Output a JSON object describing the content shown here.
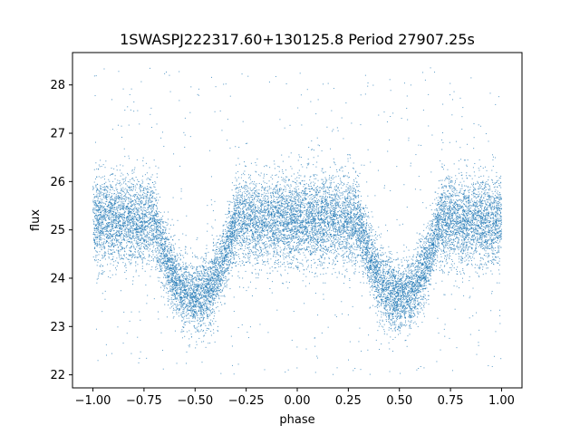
{
  "chart_data": {
    "type": "scatter",
    "title": "1SWASPJ222317.60+130125.8 Period 27907.25s",
    "xlabel": "phase",
    "ylabel": "flux",
    "xlim": [
      -1.1,
      1.1
    ],
    "ylim": [
      21.73,
      28.67
    ],
    "xticks": [
      -1.0,
      -0.75,
      -0.5,
      -0.25,
      0.0,
      0.25,
      0.5,
      0.75,
      1.0
    ],
    "xtick_labels": [
      "−1.00",
      "−0.75",
      "−0.50",
      "−0.25",
      "0.00",
      "0.25",
      "0.50",
      "0.75",
      "1.00"
    ],
    "yticks": [
      22,
      23,
      24,
      25,
      26,
      27,
      28
    ],
    "ytick_labels": [
      "22",
      "23",
      "24",
      "25",
      "26",
      "27",
      "28"
    ],
    "grid": false,
    "marker_color": "#1f77b4",
    "series_description": {
      "phase_range": [
        -1.0,
        1.0
      ],
      "baseline_flux": 25.2,
      "baseline_scatter": 0.45,
      "eclipse_centers": [
        -0.5,
        0.5
      ],
      "eclipse_min_flux": 23.6,
      "eclipse_halfwidth_phase": 0.2,
      "flux_range": [
        22.0,
        28.4
      ]
    }
  }
}
